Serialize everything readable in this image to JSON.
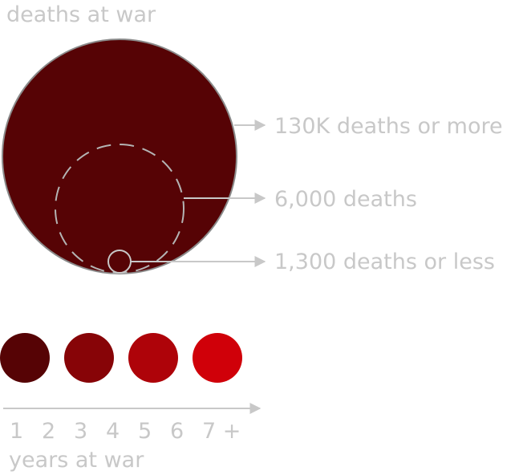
{
  "title": "deaths at war",
  "size_legend": [
    {
      "label": "130K deaths or more"
    },
    {
      "label": "6,000 deaths"
    },
    {
      "label": "1,300 deaths or less"
    }
  ],
  "color_legend": {
    "swatches": [
      "#560305",
      "#870407",
      "#AE0309",
      "#D00009"
    ],
    "ticks": [
      "1",
      "2",
      "3",
      "4",
      "5",
      "6",
      "7 +"
    ],
    "axis_label": "years at war"
  },
  "colors": {
    "label_gray": "#c8c8c8",
    "big_circle_stroke": "#8a8a8a"
  }
}
